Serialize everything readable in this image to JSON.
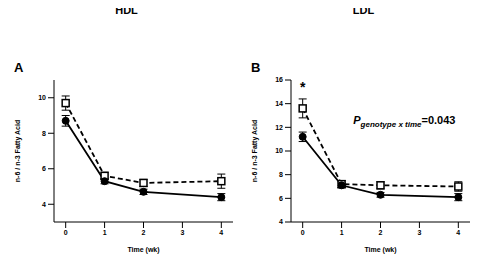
{
  "chart_data": [
    {
      "type": "line",
      "title": "HDL",
      "panel": "A",
      "x_label": "Time (wk)",
      "y_label": "n-6 / n-3 Fatty Acid",
      "x": [
        0,
        1,
        2,
        4
      ],
      "xlim": [
        -0.3,
        4.3
      ],
      "xticks": [
        0,
        1,
        2,
        3,
        4
      ],
      "ylim": [
        3,
        11
      ],
      "yticks": [
        4,
        6,
        8,
        10
      ],
      "series": [
        {
          "color": "#000000",
          "marker": "square",
          "line_style": "dashed",
          "values": [
            9.7,
            5.6,
            5.2,
            5.3
          ],
          "errors": [
            0.4,
            0.2,
            0.2,
            0.4
          ]
        },
        {
          "color": "#000000",
          "marker": "circle",
          "line_style": "solid",
          "values": [
            8.7,
            5.3,
            4.7,
            4.4
          ],
          "errors": [
            0.3,
            0.15,
            0.15,
            0.2
          ]
        }
      ],
      "annotations": []
    },
    {
      "type": "line",
      "title": "LDL",
      "panel": "B",
      "x_label": "Time (wk)",
      "y_label": "n-6 / n-3 Fatty Acid",
      "x": [
        0,
        1,
        2,
        4
      ],
      "xlim": [
        -0.3,
        4.3
      ],
      "xticks": [
        0,
        1,
        2,
        3,
        4
      ],
      "ylim": [
        4,
        16
      ],
      "yticks": [
        4,
        6,
        8,
        10,
        12,
        14,
        16
      ],
      "series": [
        {
          "color": "#000000",
          "marker": "square",
          "line_style": "dashed",
          "values": [
            13.6,
            7.2,
            7.1,
            7.0
          ],
          "errors": [
            0.8,
            0.3,
            0.3,
            0.4
          ]
        },
        {
          "color": "#000000",
          "marker": "circle",
          "line_style": "solid",
          "values": [
            11.2,
            7.1,
            6.3,
            6.1
          ],
          "errors": [
            0.4,
            0.2,
            0.2,
            0.3
          ]
        }
      ],
      "annotations": [
        {
          "text": "*",
          "x": 0,
          "y": 15.0
        },
        {
          "text": "P",
          "subscript": "genotype x time",
          "suffix": "=0.043",
          "x": 1.3,
          "y": 12.3
        }
      ]
    }
  ]
}
